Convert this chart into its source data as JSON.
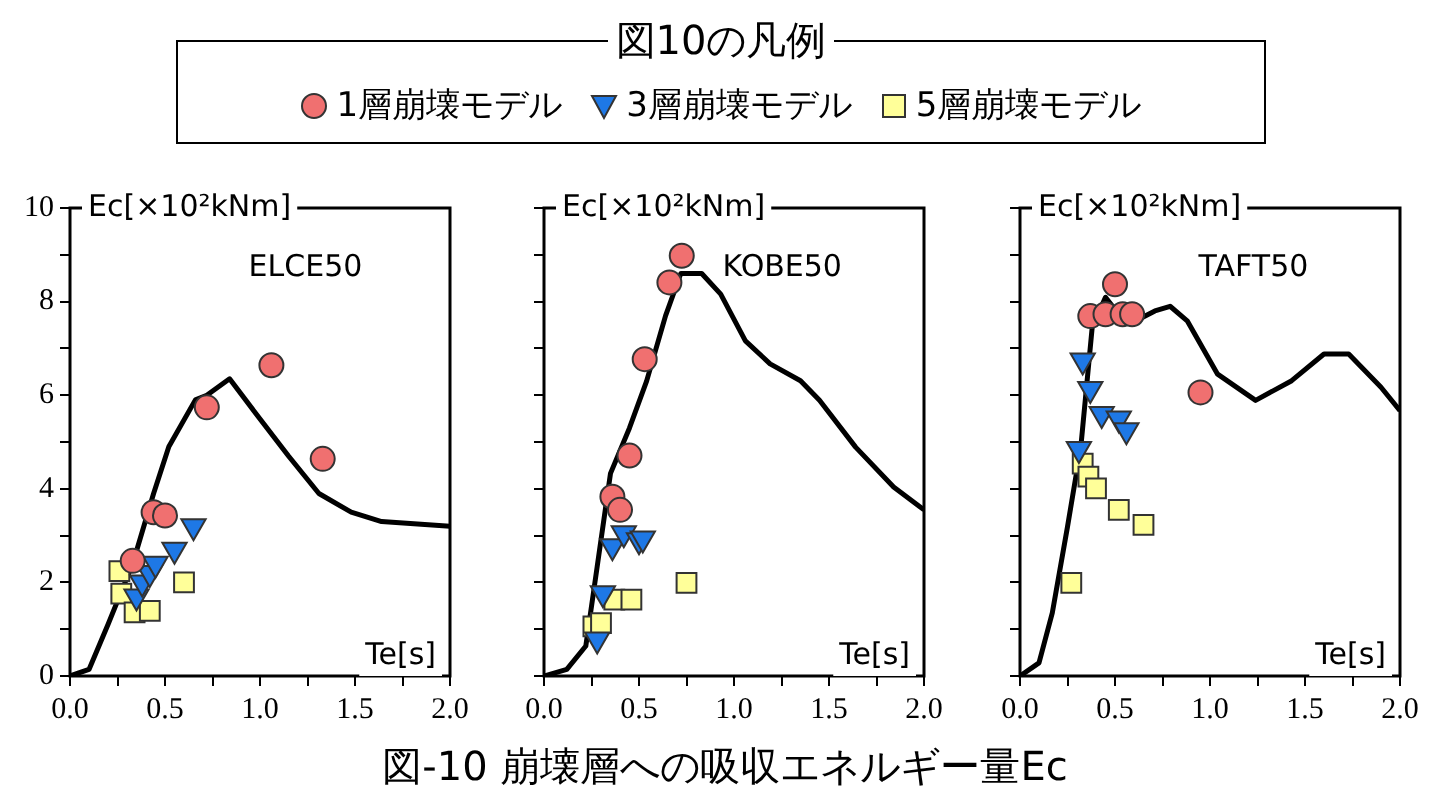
{
  "chart_data": [
    {
      "type": "scatter",
      "legend_title": "図10の凡例",
      "legend": "top",
      "xlabel": "Te[s]",
      "ylabel": "Ec[×10²kNm]",
      "annotations": [
        "ELCE50"
      ],
      "xlim": [
        0,
        2
      ],
      "ylim": [
        0,
        10
      ],
      "xticks": [
        {
          "value": 0,
          "label": "0.0"
        },
        {
          "value": 0.25,
          "label": null
        },
        {
          "value": 0.5,
          "label": "0.5"
        },
        {
          "value": 0.75,
          "label": null
        },
        {
          "value": 1,
          "label": "1.0"
        },
        {
          "value": 1.25,
          "label": null
        },
        {
          "value": 1.5,
          "label": "1.5"
        },
        {
          "value": 1.75,
          "label": null
        },
        {
          "value": 2,
          "label": "2.0"
        }
      ],
      "yticks": [
        0,
        {
          "value": 1,
          "label": null
        },
        2,
        {
          "value": 3,
          "label": null
        },
        4,
        {
          "value": 5,
          "label": null
        },
        6,
        {
          "value": 7,
          "label": null
        },
        8,
        {
          "value": 9,
          "label": null
        },
        10
      ],
      "grid": false,
      "series": [
        {
          "type": "line",
          "color": "#000000",
          "marker": "none",
          "x": [
            0,
            0.1,
            0.2,
            0.33,
            0.44,
            0.52,
            0.66,
            0.72,
            0.84,
            0.98,
            1.15,
            1.31,
            1.48,
            1.64,
            2.0
          ],
          "values": [
            0,
            0.14,
            1.1,
            2.4,
            3.9,
            4.9,
            5.9,
            6.0,
            6.35,
            5.6,
            4.7,
            3.9,
            3.5,
            3.3,
            3.2
          ]
        },
        {
          "name": "1層崩壊モデル",
          "color": "#f07070",
          "marker": "circle",
          "x": [
            0.33,
            0.44,
            0.5,
            0.72,
            1.06,
            1.33
          ],
          "values": [
            2.46,
            3.5,
            3.43,
            5.74,
            6.64,
            4.64
          ]
        },
        {
          "name": "3層崩壊モデル",
          "color": "#1e78e6",
          "marker": "triangle",
          "x": [
            0.35,
            0.38,
            0.42,
            0.45,
            0.55,
            0.65
          ],
          "values": [
            1.7,
            2.0,
            2.2,
            2.4,
            2.7,
            3.2
          ]
        },
        {
          "name": "5層崩壊モデル",
          "color": "#ffff99",
          "marker": "square",
          "x": [
            0.26,
            0.27,
            0.34,
            0.42,
            0.6
          ],
          "values": [
            2.24,
            1.76,
            1.36,
            1.39,
            2.0
          ]
        }
      ]
    },
    {
      "type": "scatter",
      "title": "図-10 崩壊層への吸収エネルギー量Ec",
      "xlabel": "Te[s]",
      "ylabel": "Ec[×10²kNm]",
      "annotations": [
        "KOBE50"
      ],
      "xlim": [
        0,
        2
      ],
      "ylim": [
        0,
        10
      ],
      "tick_labels": "x",
      "xticks": [
        {
          "value": 0,
          "label": "0.0"
        },
        {
          "value": 0.25,
          "label": null
        },
        {
          "value": 0.5,
          "label": "0.5"
        },
        {
          "value": 0.75,
          "label": null
        },
        {
          "value": 1,
          "label": "1.0"
        },
        {
          "value": 1.25,
          "label": null
        },
        {
          "value": 1.5,
          "label": "1.5"
        },
        {
          "value": 1.75,
          "label": null
        },
        {
          "value": 2,
          "label": "2.0"
        }
      ],
      "yticks": [
        0,
        {
          "value": 1,
          "label": null
        },
        2,
        {
          "value": 3,
          "label": null
        },
        4,
        {
          "value": 5,
          "label": null
        },
        6,
        {
          "value": 7,
          "label": null
        },
        8,
        {
          "value": 9,
          "label": null
        },
        10
      ],
      "grid": false,
      "series": [
        {
          "type": "line",
          "color": "#000000",
          "marker": "none",
          "x": [
            0,
            0.12,
            0.22,
            0.28,
            0.35,
            0.45,
            0.54,
            0.64,
            0.72,
            0.83,
            0.93,
            1.06,
            1.19,
            1.35,
            1.45,
            1.64,
            1.84,
            2.0
          ],
          "values": [
            0,
            0.14,
            0.64,
            2.34,
            4.33,
            5.3,
            6.3,
            7.7,
            8.6,
            8.6,
            8.16,
            7.16,
            6.67,
            6.31,
            5.89,
            4.89,
            4.04,
            3.55
          ]
        },
        {
          "color": "#f07070",
          "marker": "circle",
          "x": [
            0.725,
            0.66,
            0.53,
            0.45,
            0.36,
            0.4
          ],
          "values": [
            8.98,
            8.41,
            6.77,
            4.71,
            3.83,
            3.55
          ]
        },
        {
          "color": "#1e78e6",
          "marker": "triangle",
          "x": [
            0.36,
            0.42,
            0.5,
            0.52,
            0.31,
            0.28
          ],
          "values": [
            2.77,
            3.05,
            2.9,
            2.94,
            1.77,
            0.78
          ]
        },
        {
          "color": "#ffff99",
          "marker": "square",
          "x": [
            0.26,
            0.3,
            0.37,
            0.46,
            0.75
          ],
          "values": [
            1.06,
            1.13,
            1.63,
            1.63,
            1.99
          ]
        }
      ]
    },
    {
      "type": "scatter",
      "xlabel": "Te[s]",
      "ylabel": "Ec[×10²kNm]",
      "annotations": [
        "TAFT50"
      ],
      "xlim": [
        0,
        2
      ],
      "ylim": [
        0,
        10
      ],
      "tick_labels": "x",
      "xticks": [
        {
          "value": 0,
          "label": "0.0"
        },
        {
          "value": 0.25,
          "label": null
        },
        {
          "value": 0.5,
          "label": "0.5"
        },
        {
          "value": 0.75,
          "label": null
        },
        {
          "value": 1,
          "label": "1.0"
        },
        {
          "value": 1.25,
          "label": null
        },
        {
          "value": 1.5,
          "label": "1.5"
        },
        {
          "value": 1.75,
          "label": null
        },
        {
          "value": 2,
          "label": "2.0"
        }
      ],
      "yticks": [
        0,
        {
          "value": 1,
          "label": null
        },
        2,
        {
          "value": 3,
          "label": null
        },
        4,
        {
          "value": 5,
          "label": null
        },
        6,
        {
          "value": 7,
          "label": null
        },
        8,
        {
          "value": 9,
          "label": null
        },
        10
      ],
      "grid": false,
      "series": [
        {
          "type": "line",
          "color": "#000000",
          "marker": "none",
          "x": [
            0,
            0.1,
            0.17,
            0.25,
            0.32,
            0.38,
            0.45,
            0.52,
            0.61,
            0.71,
            0.79,
            0.88,
            1.04,
            1.24,
            1.43,
            1.6,
            1.73,
            1.9,
            2.0
          ],
          "values": [
            0,
            0.28,
            1.35,
            3.19,
            4.89,
            7.45,
            8.09,
            7.73,
            7.59,
            7.8,
            7.9,
            7.59,
            6.45,
            5.89,
            6.31,
            6.88,
            6.88,
            6.17,
            5.67
          ]
        },
        {
          "color": "#f07070",
          "marker": "circle",
          "x": [
            0.5,
            0.37,
            0.45,
            0.54,
            0.59,
            0.95
          ],
          "values": [
            8.37,
            7.69,
            7.73,
            7.73,
            7.73,
            6.06
          ]
        },
        {
          "color": "#1e78e6",
          "marker": "triangle",
          "x": [
            0.33,
            0.37,
            0.43,
            0.52,
            0.56,
            0.31
          ],
          "values": [
            6.74,
            6.13,
            5.6,
            5.5,
            5.25,
            4.85
          ]
        },
        {
          "color": "#ffff99",
          "marker": "square",
          "x": [
            0.33,
            0.36,
            0.4,
            0.52,
            0.65,
            0.27
          ],
          "values": [
            4.54,
            4.26,
            4.01,
            3.55,
            3.23,
            1.99
          ]
        }
      ]
    }
  ]
}
